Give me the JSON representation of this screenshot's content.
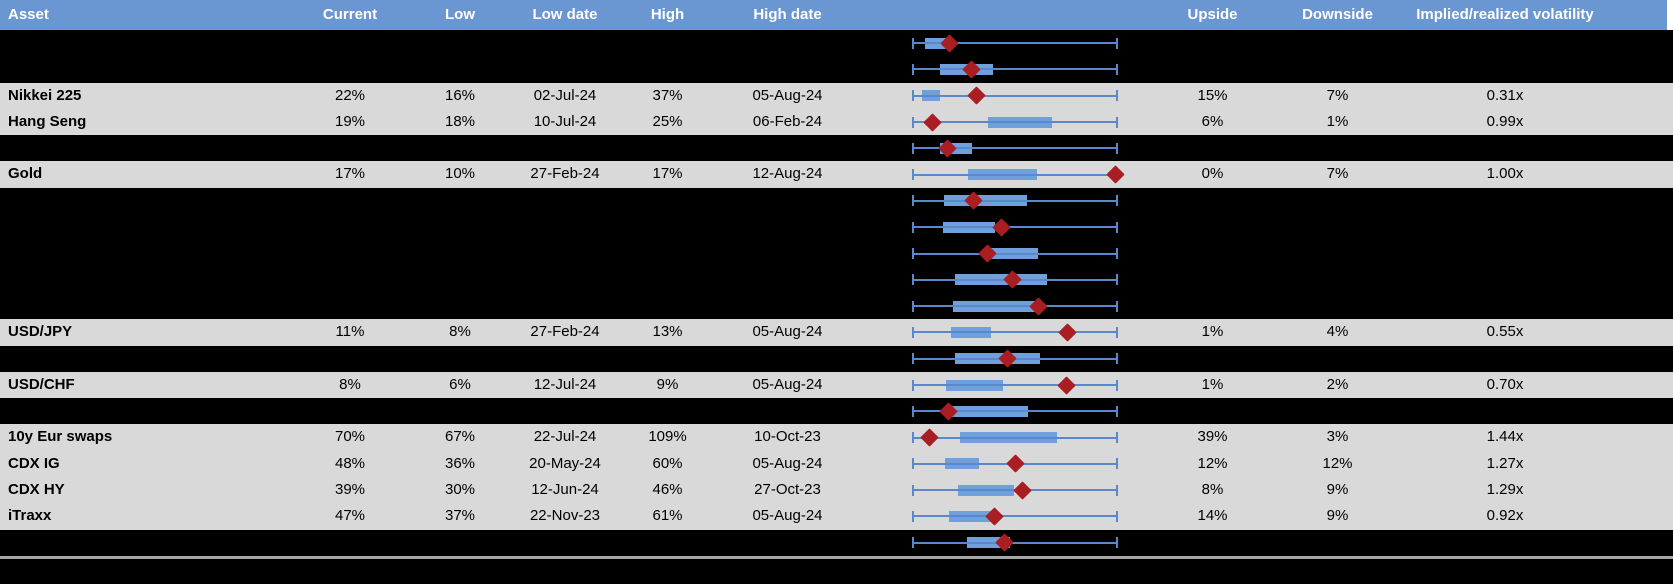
{
  "colors": {
    "header_bg": "#6A96D2",
    "header_text": "#FFFFFF",
    "row_data_bg": "#D9D9D9",
    "row_spacer_bg": "#000000",
    "text": "#000000",
    "whisker": "#5988CC",
    "box_fill": "#6FA0DC",
    "marker": "#A91E23",
    "separator": "#A6A6A6"
  },
  "header": {
    "asset": "Asset",
    "current": "Current",
    "low": "Low",
    "low_date": "Low date",
    "high": "High",
    "high_date": "High date",
    "upside": "Upside",
    "downside": "Downside",
    "implied": "Implied/realized volatility"
  },
  "rows": [
    {
      "label": "",
      "current": "",
      "low": "",
      "low_date": "",
      "high": "",
      "high_date": "",
      "upside": "",
      "downside": "",
      "implied_realized": "",
      "box_lo": 0.063,
      "box_hi": 0.199,
      "marker": 0.18
    },
    {
      "label": "",
      "current": "",
      "low": "",
      "low_date": "",
      "high": "",
      "high_date": "",
      "upside": "",
      "downside": "",
      "implied_realized": "",
      "box_lo": 0.136,
      "box_hi": 0.393,
      "marker": 0.291
    },
    {
      "label": "Nikkei 225",
      "current": "22%",
      "low": "16%",
      "low_date": "02-Jul-24",
      "high": "37%",
      "high_date": "05-Aug-24",
      "upside": "15%",
      "downside": "7%",
      "implied_realized": "0.31x",
      "box_lo": 0.049,
      "box_hi": 0.136,
      "marker": 0.311
    },
    {
      "label": "Hang Seng",
      "current": "19%",
      "low": "18%",
      "low_date": "10-Jul-24",
      "high": "25%",
      "high_date": "06-Feb-24",
      "upside": "6%",
      "downside": "1%",
      "implied_realized": "0.99x",
      "box_lo": 0.369,
      "box_hi": 0.68,
      "marker": 0.097
    },
    {
      "label": "",
      "current": "",
      "low": "",
      "low_date": "",
      "high": "",
      "high_date": "",
      "upside": "",
      "downside": "",
      "implied_realized": "",
      "box_lo": 0.136,
      "box_hi": 0.291,
      "marker": 0.17
    },
    {
      "label": "Gold",
      "current": "17%",
      "low": "10%",
      "low_date": "27-Feb-24",
      "high": "17%",
      "high_date": "12-Aug-24",
      "upside": "0%",
      "downside": "7%",
      "implied_realized": "1.00x",
      "box_lo": 0.272,
      "box_hi": 0.607,
      "marker": 0.99
    },
    {
      "label": "",
      "current": "",
      "low": "",
      "low_date": "",
      "high": "",
      "high_date": "",
      "upside": "",
      "downside": "",
      "implied_realized": "",
      "box_lo": 0.155,
      "box_hi": 0.558,
      "marker": 0.296
    },
    {
      "label": "",
      "current": "",
      "low": "",
      "low_date": "",
      "high": "",
      "high_date": "",
      "upside": "",
      "downside": "",
      "implied_realized": "",
      "box_lo": 0.15,
      "box_hi": 0.403,
      "marker": 0.432
    },
    {
      "label": "",
      "current": "",
      "low": "",
      "low_date": "",
      "high": "",
      "high_date": "",
      "upside": "",
      "downside": "",
      "implied_realized": "",
      "box_lo": 0.369,
      "box_hi": 0.612,
      "marker": 0.364
    },
    {
      "label": "",
      "current": "",
      "low": "",
      "low_date": "",
      "high": "",
      "high_date": "",
      "upside": "",
      "downside": "",
      "implied_realized": "",
      "box_lo": 0.209,
      "box_hi": 0.655,
      "marker": 0.49
    },
    {
      "label": "",
      "current": "",
      "low": "",
      "low_date": "",
      "high": "",
      "high_date": "",
      "upside": "",
      "downside": "",
      "implied_realized": "",
      "box_lo": 0.199,
      "box_hi": 0.621,
      "marker": 0.612
    },
    {
      "label": "USD/JPY",
      "current": "11%",
      "low": "8%",
      "low_date": "27-Feb-24",
      "high": "13%",
      "high_date": "05-Aug-24",
      "upside": "1%",
      "downside": "4%",
      "implied_realized": "0.55x",
      "box_lo": 0.189,
      "box_hi": 0.383,
      "marker": 0.757
    },
    {
      "label": "",
      "current": "",
      "low": "",
      "low_date": "",
      "high": "",
      "high_date": "",
      "upside": "",
      "downside": "",
      "implied_realized": "",
      "box_lo": 0.209,
      "box_hi": 0.621,
      "marker": 0.461
    },
    {
      "label": "USD/CHF",
      "current": "8%",
      "low": "6%",
      "low_date": "12-Jul-24",
      "high": "9%",
      "high_date": "05-Aug-24",
      "upside": "1%",
      "downside": "2%",
      "implied_realized": "0.70x",
      "box_lo": 0.165,
      "box_hi": 0.442,
      "marker": 0.752
    },
    {
      "label": "",
      "current": "",
      "low": "",
      "low_date": "",
      "high": "",
      "high_date": "",
      "upside": "",
      "downside": "",
      "implied_realized": "",
      "box_lo": 0.18,
      "box_hi": 0.563,
      "marker": 0.175
    },
    {
      "label": "10y Eur swaps",
      "current": "70%",
      "low": "67%",
      "low_date": "22-Jul-24",
      "high": "109%",
      "high_date": "10-Oct-23",
      "upside": "39%",
      "downside": "3%",
      "implied_realized": "1.44x",
      "box_lo": 0.233,
      "box_hi": 0.704,
      "marker": 0.087
    },
    {
      "label": "CDX IG",
      "current": "48%",
      "low": "36%",
      "low_date": "20-May-24",
      "high": "60%",
      "high_date": "05-Aug-24",
      "upside": "12%",
      "downside": "12%",
      "implied_realized": "1.27x",
      "box_lo": 0.16,
      "box_hi": 0.325,
      "marker": 0.5
    },
    {
      "label": "CDX HY",
      "current": "39%",
      "low": "30%",
      "low_date": "12-Jun-24",
      "high": "46%",
      "high_date": "27-Oct-23",
      "upside": "8%",
      "downside": "9%",
      "implied_realized": "1.29x",
      "box_lo": 0.223,
      "box_hi": 0.495,
      "marker": 0.534
    },
    {
      "label": "iTraxx",
      "current": "47%",
      "low": "37%",
      "low_date": "22-Nov-23",
      "high": "61%",
      "high_date": "05-Aug-24",
      "upside": "14%",
      "downside": "9%",
      "implied_realized": "0.92x",
      "box_lo": 0.18,
      "box_hi": 0.398,
      "marker": 0.398
    },
    {
      "label": "",
      "current": "",
      "low": "",
      "low_date": "",
      "high": "",
      "high_date": "",
      "upside": "",
      "downside": "",
      "implied_realized": "",
      "box_lo": 0.267,
      "box_hi": 0.476,
      "marker": 0.447
    }
  ],
  "chart_data": {
    "type": "table",
    "columns": [
      "Asset",
      "Current",
      "Low",
      "Low date",
      "High",
      "High date",
      "Upside",
      "Downside",
      "Implied/realized volatility"
    ],
    "rows": [
      [
        "Nikkei 225",
        "22%",
        "16%",
        "02-Jul-24",
        "37%",
        "05-Aug-24",
        "15%",
        "7%",
        "0.31x"
      ],
      [
        "Hang Seng",
        "19%",
        "18%",
        "10-Jul-24",
        "25%",
        "06-Feb-24",
        "6%",
        "1%",
        "0.99x"
      ],
      [
        "Gold",
        "17%",
        "10%",
        "27-Feb-24",
        "17%",
        "12-Aug-24",
        "0%",
        "7%",
        "1.00x"
      ],
      [
        "USD/JPY",
        "11%",
        "8%",
        "27-Feb-24",
        "13%",
        "05-Aug-24",
        "1%",
        "4%",
        "0.55x"
      ],
      [
        "USD/CHF",
        "8%",
        "6%",
        "12-Jul-24",
        "9%",
        "05-Aug-24",
        "1%",
        "2%",
        "0.70x"
      ],
      [
        "10y Eur swaps",
        "70%",
        "67%",
        "22-Jul-24",
        "109%",
        "10-Oct-23",
        "39%",
        "3%",
        "1.44x"
      ],
      [
        "CDX IG",
        "48%",
        "36%",
        "20-May-24",
        "60%",
        "05-Aug-24",
        "12%",
        "12%",
        "1.27x"
      ],
      [
        "CDX HY",
        "39%",
        "30%",
        "12-Jun-24",
        "46%",
        "27-Oct-23",
        "8%",
        "9%",
        "1.29x"
      ],
      [
        "iTraxx",
        "47%",
        "37%",
        "22-Nov-23",
        "61%",
        "05-Aug-24",
        "14%",
        "9%",
        "0.92x"
      ]
    ],
    "boxplot_column": {
      "description": "Each row contains a horizontal box-whisker plot: whiskers span the full 12m low-to-high range (0 to 1), blue box marks the interquartile range, dark-red diamond marks the current level",
      "scale": [
        0,
        1
      ],
      "legend_position": "none",
      "grid": false
    }
  }
}
